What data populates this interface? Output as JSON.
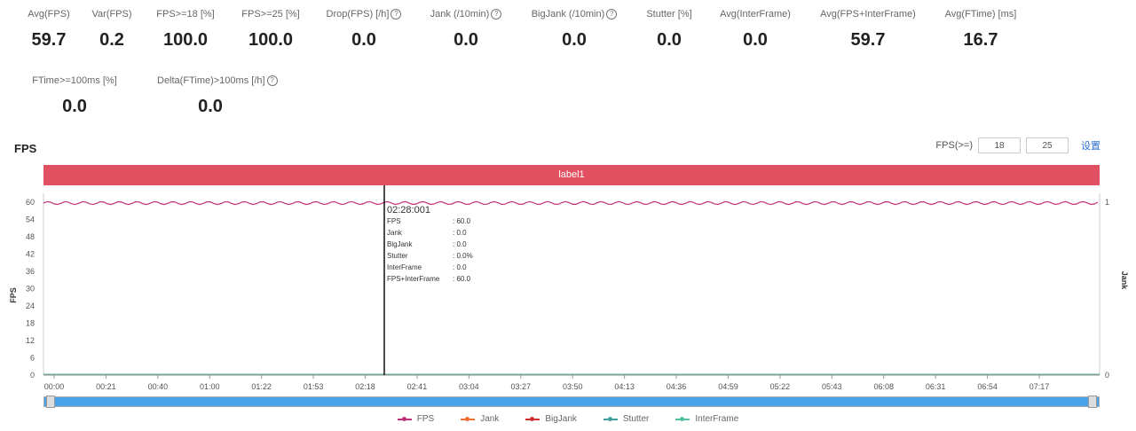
{
  "metrics": [
    {
      "label": "Avg(FPS)",
      "value": "59.7",
      "info": false
    },
    {
      "label": "Var(FPS)",
      "value": "0.2",
      "info": false
    },
    {
      "label": "FPS>=18 [%]",
      "value": "100.0",
      "info": false
    },
    {
      "label": "FPS>=25 [%]",
      "value": "100.0",
      "info": false
    },
    {
      "label": "Drop(FPS) [/h]",
      "value": "0.0",
      "info": true
    },
    {
      "label": "Jank (/10min)",
      "value": "0.0",
      "info": true
    },
    {
      "label": "BigJank (/10min)",
      "value": "0.0",
      "info": true
    },
    {
      "label": "Stutter [%]",
      "value": "0.0",
      "info": false
    },
    {
      "label": "Avg(InterFrame)",
      "value": "0.0",
      "info": false
    },
    {
      "label": "Avg(FPS+InterFrame)",
      "value": "59.7",
      "info": false
    },
    {
      "label": "Avg(FTime) [ms]",
      "value": "16.7",
      "info": false
    },
    {
      "label": "FTime>=100ms [%]",
      "value": "0.0",
      "info": false
    },
    {
      "label": "Delta(FTime)>100ms [/h]",
      "value": "0.0",
      "info": true
    }
  ],
  "chart_title": "FPS",
  "fps_controls": {
    "label": "FPS(>=)",
    "value1": "18",
    "value2": "25",
    "apply_label": "设置"
  },
  "label_bar": "label1",
  "tooltip": {
    "time": "02:28:001",
    "rows": [
      {
        "name": "FPS",
        "value": ": 60.0"
      },
      {
        "name": "Jank",
        "value": ": 0.0"
      },
      {
        "name": "BigJank",
        "value": ": 0.0"
      },
      {
        "name": "Stutter",
        "value": ": 0.0%"
      },
      {
        "name": "InterFrame",
        "value": ": 0.0"
      },
      {
        "name": "FPS+InterFrame",
        "value": ": 60.0"
      }
    ]
  },
  "chart_data": {
    "type": "line",
    "ylabel": "FPS",
    "y2label": "Jank",
    "y_ticks": [
      "0",
      "6",
      "12",
      "18",
      "24",
      "30",
      "36",
      "42",
      "48",
      "54",
      "60"
    ],
    "y2_ticks": [
      "0",
      "1"
    ],
    "ylim": [
      0,
      60
    ],
    "x_ticks": [
      "00:00",
      "00:21",
      "00:40",
      "01:00",
      "01:22",
      "01:53",
      "02:18",
      "02:41",
      "03:04",
      "03:27",
      "03:50",
      "04:13",
      "04:36",
      "04:59",
      "05:22",
      "05:43",
      "06:08",
      "06:31",
      "06:54",
      "07:17"
    ],
    "series": [
      {
        "name": "FPS",
        "color": "#c0307a",
        "value_approx": 59.7,
        "range": [
          59,
          60
        ]
      },
      {
        "name": "Jank",
        "color": "#f07030",
        "value": 0
      },
      {
        "name": "BigJank",
        "color": "#d03030",
        "value": 0
      },
      {
        "name": "Stutter",
        "color": "#40a0a0",
        "value": 0
      },
      {
        "name": "InterFrame",
        "color": "#50c0a0",
        "value": 0
      }
    ],
    "cursor_time": "02:28:001"
  },
  "legend": [
    {
      "name": "FPS",
      "color": "#c0307a"
    },
    {
      "name": "Jank",
      "color": "#f07030"
    },
    {
      "name": "BigJank",
      "color": "#d03030"
    },
    {
      "name": "Stutter",
      "color": "#40a0a0"
    },
    {
      "name": "InterFrame",
      "color": "#50c0a0"
    }
  ]
}
